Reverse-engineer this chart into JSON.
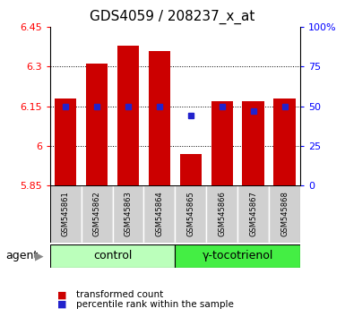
{
  "title": "GDS4059 / 208237_x_at",
  "categories": [
    "GSM545861",
    "GSM545862",
    "GSM545863",
    "GSM545864",
    "GSM545865",
    "GSM545866",
    "GSM545867",
    "GSM545868"
  ],
  "bar_values": [
    6.18,
    6.31,
    6.38,
    6.36,
    5.97,
    6.17,
    6.17,
    6.18
  ],
  "percentile_values": [
    50,
    50,
    50,
    50,
    44,
    50,
    47,
    50
  ],
  "ylim_left": [
    5.85,
    6.45
  ],
  "ylim_right": [
    0,
    100
  ],
  "yticks_left": [
    5.85,
    6.0,
    6.15,
    6.3,
    6.45
  ],
  "ytick_labels_left": [
    "5.85",
    "6",
    "6.15",
    "6.3",
    "6.45"
  ],
  "yticks_right": [
    0,
    25,
    50,
    75,
    100
  ],
  "ytick_labels_right": [
    "0",
    "25",
    "50",
    "75",
    "100%"
  ],
  "bar_color": "#cc0000",
  "dot_color": "#2222cc",
  "bar_width": 0.7,
  "bar_bottom": 5.85,
  "group_labels": [
    "control",
    "γ-tocotrienol"
  ],
  "group_colors": [
    "#bbffbb",
    "#44ee44"
  ],
  "legend_items": [
    "transformed count",
    "percentile rank within the sample"
  ],
  "legend_colors": [
    "#cc0000",
    "#2222cc"
  ],
  "title_fontsize": 11,
  "tick_fontsize": 8,
  "cat_fontsize": 6,
  "grp_fontsize": 9,
  "legend_fontsize": 7.5
}
